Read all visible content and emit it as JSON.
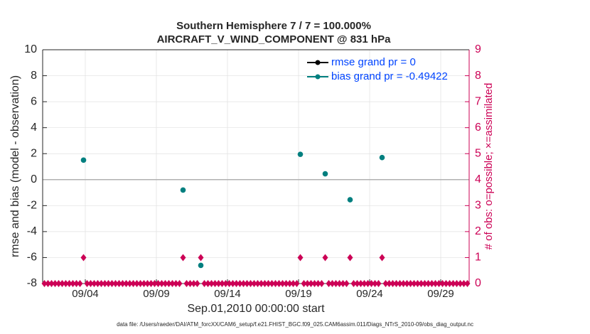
{
  "chart_data": {
    "type": "scatter",
    "title": "Southern Hemisphere 7 / 7 = 100.000%",
    "subtitle": "AIRCRAFT_V_WIND_COMPONENT @ 831 hPa",
    "ylabel": "rmse and bias (model - observation)",
    "y2label": "# of obs: o=possible; ×=assimilated",
    "xlabel": "Sep.01,2010 00:00:00 start",
    "footnote": "data file: /Users/raeder/DAI/ATM_forcXX/CAM6_setup/f.e21.FHIST_BGC.f09_025.CAM6assim.011/Diags_NTrS_2010-09/obs_diag_output.nc",
    "xlim": [
      0,
      30
    ],
    "xticks": [
      {
        "value": 3,
        "label": "09/04"
      },
      {
        "value": 8,
        "label": "09/09"
      },
      {
        "value": 13,
        "label": "09/14"
      },
      {
        "value": 18,
        "label": "09/19"
      },
      {
        "value": 23,
        "label": "09/24"
      },
      {
        "value": 28,
        "label": "09/29"
      }
    ],
    "ylim": [
      -8,
      10
    ],
    "yticks": [
      -8,
      -6,
      -4,
      -2,
      0,
      2,
      4,
      6,
      8,
      10
    ],
    "y2lim": [
      0,
      9
    ],
    "y2ticks": [
      0,
      1,
      2,
      3,
      4,
      5,
      6,
      7,
      8,
      9
    ],
    "grid": true,
    "legend": "upper right",
    "axis2_color": "#cc0055",
    "series": [
      {
        "name": "rmse grand pr = 0",
        "color": "#000000",
        "x": [
          2.875,
          9.875,
          11.125,
          18.125,
          19.875,
          21.625,
          23.875
        ],
        "values": [
          null,
          null,
          null,
          null,
          null,
          null,
          null
        ]
      },
      {
        "name": "bias grand pr = -0.49422",
        "color": "#007f7f",
        "x": [
          2.875,
          9.875,
          11.125,
          18.125,
          19.875,
          21.625,
          23.875
        ],
        "values": [
          1.5,
          -0.8,
          -6.6,
          1.95,
          0.45,
          -1.55,
          1.7
        ]
      },
      {
        "axis": "y2",
        "color": "#cc0055",
        "marker": "diamond",
        "x": [
          0.125,
          0.375,
          0.625,
          0.875,
          1.125,
          1.375,
          1.625,
          1.875,
          2.125,
          2.375,
          2.625,
          2.875,
          3.125,
          3.375,
          3.625,
          3.875,
          4.125,
          4.375,
          4.625,
          4.875,
          5.125,
          5.375,
          5.625,
          5.875,
          6.125,
          6.375,
          6.625,
          6.875,
          7.125,
          7.375,
          7.625,
          7.875,
          8.125,
          8.375,
          8.625,
          8.875,
          9.125,
          9.375,
          9.625,
          9.875,
          10.125,
          10.375,
          10.625,
          10.875,
          11.125,
          11.375,
          11.625,
          11.875,
          12.125,
          12.375,
          12.625,
          12.875,
          13.125,
          13.375,
          13.625,
          13.875,
          14.125,
          14.375,
          14.625,
          14.875,
          15.125,
          15.375,
          15.625,
          15.875,
          16.125,
          16.375,
          16.625,
          16.875,
          17.125,
          17.375,
          17.625,
          17.875,
          18.125,
          18.375,
          18.625,
          18.875,
          19.125,
          19.375,
          19.625,
          19.875,
          20.125,
          20.375,
          20.625,
          20.875,
          21.125,
          21.375,
          21.625,
          21.875,
          22.125,
          22.375,
          22.625,
          22.875,
          23.125,
          23.375,
          23.625,
          23.875,
          24.125,
          24.375,
          24.625,
          24.875,
          25.125,
          25.375,
          25.625,
          25.875,
          26.125,
          26.375,
          26.625,
          26.875,
          27.125,
          27.375,
          27.625,
          27.875,
          28.125,
          28.375,
          28.625,
          28.875,
          29.125,
          29.375,
          29.625,
          29.875
        ],
        "values": [
          0,
          0,
          0,
          0,
          0,
          0,
          0,
          0,
          0,
          0,
          0,
          1,
          0,
          0,
          0,
          0,
          0,
          0,
          0,
          0,
          0,
          0,
          0,
          0,
          0,
          0,
          0,
          0,
          0,
          0,
          0,
          0,
          0,
          0,
          0,
          0,
          0,
          0,
          0,
          1,
          0,
          0,
          0,
          0,
          1,
          0,
          0,
          0,
          0,
          0,
          0,
          0,
          0,
          0,
          0,
          0,
          0,
          0,
          0,
          0,
          0,
          0,
          0,
          0,
          0,
          0,
          0,
          0,
          0,
          0,
          0,
          0,
          1,
          0,
          0,
          0,
          0,
          0,
          0,
          1,
          0,
          0,
          0,
          0,
          0,
          0,
          1,
          0,
          0,
          0,
          0,
          0,
          0,
          0,
          0,
          1,
          0,
          0,
          0,
          0,
          0,
          0,
          0,
          0,
          0,
          0,
          0,
          0,
          0,
          0,
          0,
          0,
          0,
          0,
          0,
          0,
          0,
          0,
          0,
          0
        ]
      }
    ]
  }
}
